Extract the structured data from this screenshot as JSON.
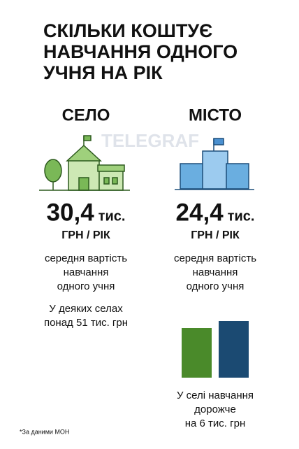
{
  "title": [
    "СКІЛЬКИ КОШТУЄ",
    "НАВЧАННЯ ОДНОГО",
    "УЧНЯ НА РІК"
  ],
  "watermark": "TELEGRAF",
  "village": {
    "heading": "СЕЛО",
    "amount": "30,4",
    "unit": "тис.",
    "per": "ГРН / РІК",
    "description": [
      "середня вартість",
      "навчання",
      "одного учня"
    ],
    "note": [
      "У деяких селах",
      "понад 51 тис. грн"
    ]
  },
  "city": {
    "heading": "МІСТО",
    "amount": "24,4",
    "unit": "тис.",
    "per": "ГРН / РІК",
    "description": [
      "середня вартість",
      "навчання",
      "одного учня"
    ]
  },
  "chart_data": {
    "type": "bar",
    "categories": [
      null,
      null
    ],
    "values": [
      71,
      81
    ],
    "colors": [
      "#4a8a2a",
      "#1b4a72"
    ],
    "note": [
      "У селі навчання",
      "дорожче",
      "на 6 тис. грн"
    ]
  },
  "footnote": "*За даними МОН"
}
